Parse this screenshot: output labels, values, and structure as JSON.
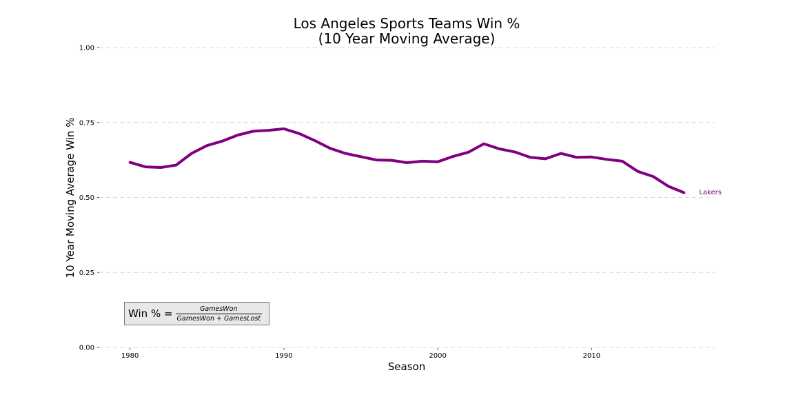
{
  "chart_data": {
    "type": "line",
    "title_line1": "Los Angeles Sports Teams Win %",
    "title_line2": "(10 Year Moving Average)",
    "xlabel": "Season",
    "ylabel": "10 Year Moving Average Win %",
    "xlim": [
      1978,
      2018
    ],
    "ylim": [
      0,
      1
    ],
    "x_ticks": [
      1980,
      1990,
      2000,
      2010
    ],
    "y_ticks": [
      "0.00",
      "0.25",
      "0.50",
      "0.75",
      "1.00"
    ],
    "grid": "horizontal dashed",
    "series": [
      {
        "name": "Lakers",
        "color": "#800080",
        "x": [
          1980,
          1981,
          1982,
          1983,
          1984,
          1985,
          1986,
          1987,
          1988,
          1989,
          1990,
          1991,
          1992,
          1993,
          1994,
          1995,
          1996,
          1997,
          1998,
          1999,
          2000,
          2001,
          2002,
          2003,
          2004,
          2005,
          2006,
          2007,
          2008,
          2009,
          2010,
          2011,
          2012,
          2013,
          2014,
          2015,
          2016
        ],
        "y": [
          0.617,
          0.602,
          0.6,
          0.608,
          0.647,
          0.673,
          0.688,
          0.708,
          0.721,
          0.724,
          0.729,
          0.713,
          0.69,
          0.664,
          0.647,
          0.636,
          0.625,
          0.624,
          0.616,
          0.621,
          0.619,
          0.637,
          0.651,
          0.679,
          0.662,
          0.652,
          0.634,
          0.629,
          0.647,
          0.634,
          0.635,
          0.627,
          0.621,
          0.587,
          0.57,
          0.537,
          0.516
        ]
      }
    ],
    "annotation": {
      "lhs": "Win % =",
      "numerator": "GamesWon",
      "denominator": "GamesWon + GamesLost"
    }
  }
}
